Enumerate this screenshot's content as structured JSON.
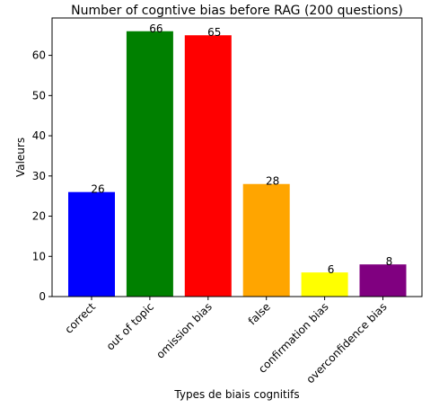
{
  "chart_data": {
    "type": "bar",
    "title": "Number of cogntive bias before RAG (200 questions)",
    "xlabel": "Types de biais cognitifs",
    "ylabel": "Valeurs",
    "categories": [
      "correct",
      "out of topic",
      "omission bias",
      "false",
      "confirmation bias",
      "overconfidence bias"
    ],
    "values": [
      26,
      66,
      65,
      28,
      6,
      8
    ],
    "colors": [
      "#0000ff",
      "#008000",
      "#ff0000",
      "#ffa500",
      "#ffff00",
      "#800080"
    ],
    "yticks": [
      0,
      10,
      20,
      30,
      40,
      50,
      60
    ],
    "ylim": [
      0,
      69.3
    ],
    "grid": false,
    "legend": "none"
  }
}
